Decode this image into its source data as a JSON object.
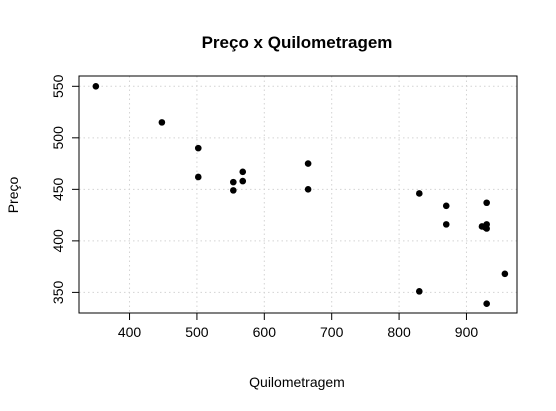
{
  "chart_data": {
    "type": "scatter",
    "title": "Preço x Quilometragem",
    "xlabel": "Quilometragem",
    "ylabel": "Preço",
    "xlim": [
      325,
      975
    ],
    "ylim": [
      330,
      560
    ],
    "xticks": [
      400,
      500,
      600,
      700,
      800,
      900
    ],
    "yticks": [
      350,
      400,
      450,
      500,
      550
    ],
    "xtick_labels": [
      "400",
      "500",
      "600",
      "700",
      "800",
      "900"
    ],
    "ytick_labels": [
      "350",
      "400",
      "450",
      "500",
      "550"
    ],
    "grid": true,
    "point_color": "#000000",
    "points": [
      {
        "x": 350,
        "y": 550
      },
      {
        "x": 448,
        "y": 515
      },
      {
        "x": 502,
        "y": 490
      },
      {
        "x": 502,
        "y": 462
      },
      {
        "x": 554,
        "y": 457
      },
      {
        "x": 554,
        "y": 449
      },
      {
        "x": 568,
        "y": 467
      },
      {
        "x": 568,
        "y": 458
      },
      {
        "x": 665,
        "y": 475
      },
      {
        "x": 665,
        "y": 450
      },
      {
        "x": 830,
        "y": 446
      },
      {
        "x": 830,
        "y": 351
      },
      {
        "x": 870,
        "y": 434
      },
      {
        "x": 870,
        "y": 416
      },
      {
        "x": 923,
        "y": 414
      },
      {
        "x": 928,
        "y": 413
      },
      {
        "x": 930,
        "y": 437
      },
      {
        "x": 930,
        "y": 416
      },
      {
        "x": 930,
        "y": 412
      },
      {
        "x": 930,
        "y": 339
      },
      {
        "x": 957,
        "y": 368
      }
    ]
  }
}
